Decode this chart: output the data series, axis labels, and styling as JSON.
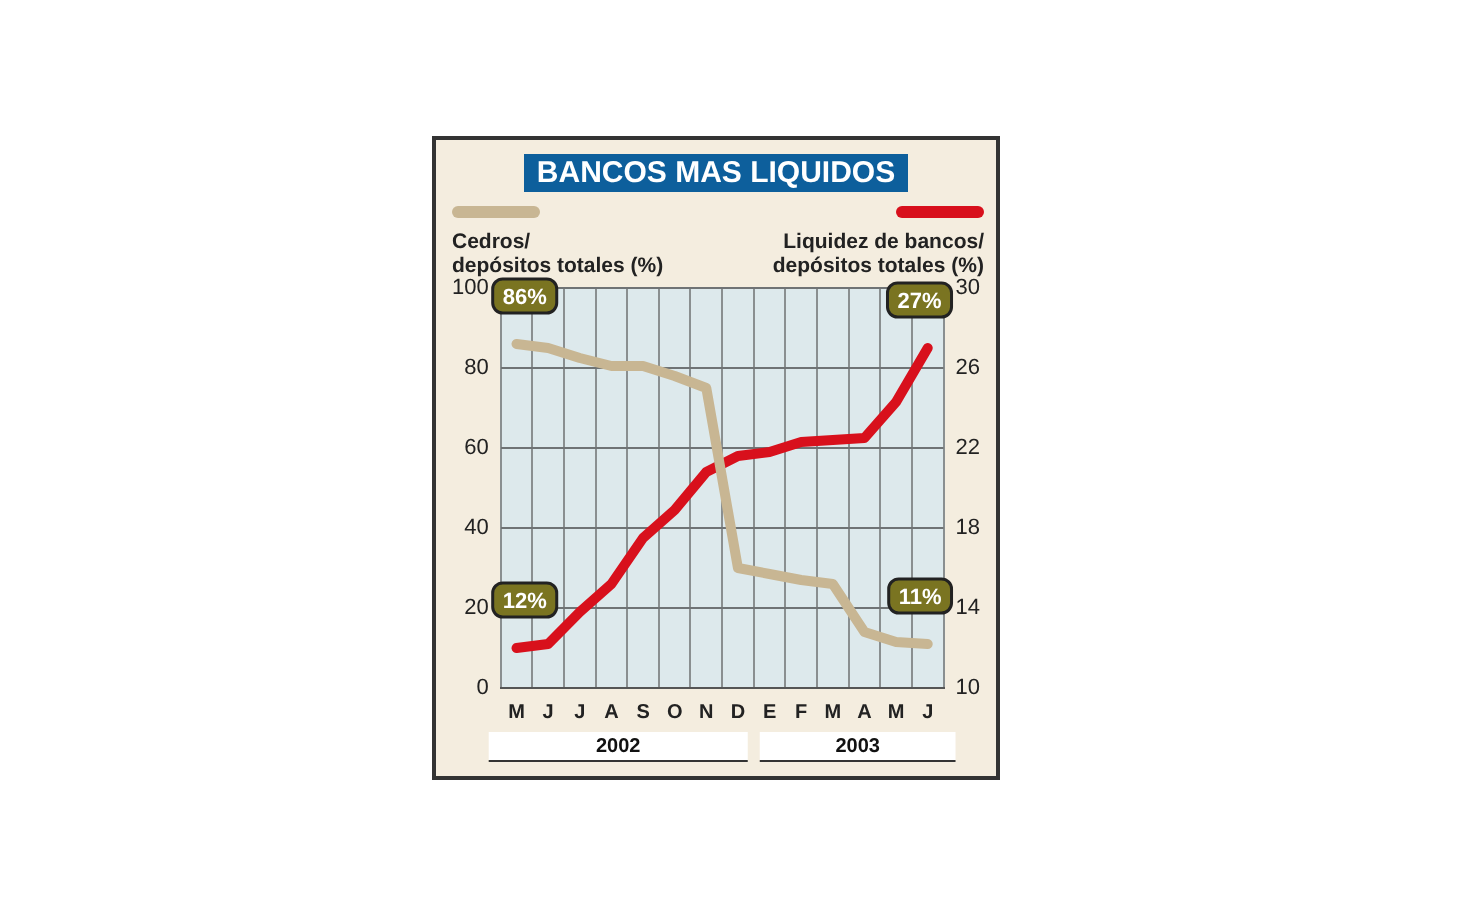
{
  "chart_data": {
    "type": "line",
    "title": "BANCOS MAS LIQUIDOS",
    "ylabel": "Cedros/\ndepósitos totales (%)",
    "y2label": "Liquidez de bancos/\ndepósitos totales (%)",
    "categories": [
      "M",
      "J",
      "J",
      "A",
      "S",
      "O",
      "N",
      "D",
      "E",
      "F",
      "M",
      "A",
      "M",
      "J"
    ],
    "series": [
      {
        "color": "#c8b693",
        "values": [
          86,
          85,
          82.5,
          80.5,
          80.5,
          78,
          75,
          30,
          28.5,
          27,
          26,
          14,
          11.5,
          11
        ],
        "value_labels": [
          "86%",
          null,
          null,
          null,
          null,
          null,
          null,
          null,
          null,
          null,
          null,
          null,
          null,
          "11%"
        ]
      },
      {
        "color": "#d8101c",
        "axis": "y2",
        "values": [
          12,
          12.2,
          13.8,
          15.2,
          17.5,
          18.9,
          20.8,
          21.6,
          21.8,
          22.3,
          22.4,
          22.5,
          24.3,
          27
        ],
        "value_labels": [
          "12%",
          null,
          null,
          null,
          null,
          null,
          null,
          null,
          null,
          null,
          null,
          null,
          null,
          "27%"
        ]
      }
    ],
    "ylim": [
      0,
      100
    ],
    "yticks": [
      0,
      20,
      40,
      60,
      80,
      100
    ],
    "y2lim": [
      10,
      30
    ],
    "y2ticks": [
      10,
      14,
      18,
      22,
      26,
      30
    ],
    "annotations": [
      "2002",
      "2003"
    ],
    "grid": true,
    "legend": false,
    "marker": "none",
    "line_style": "solid"
  }
}
